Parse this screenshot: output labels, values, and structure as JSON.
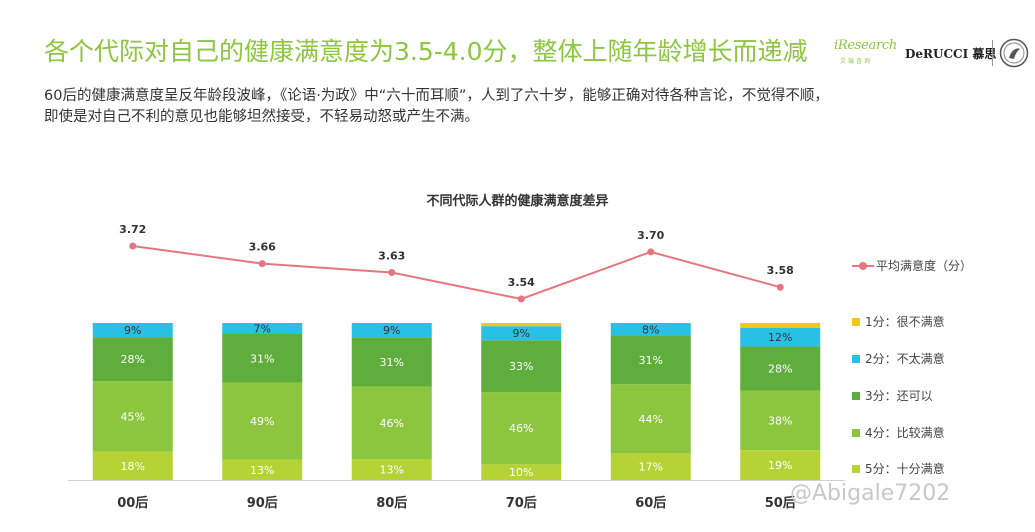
{
  "header": {
    "title": "各个代际对自己的健康满意度为3.5-4.0分，整体上随年龄增长而递减",
    "subtitle_lines": [
      "60后的健康满意度呈反年龄段波峰，《论语·为政》中“六十而耳顺”，人到了六十岁，能够正确对待各种言论，不觉得不顺，",
      "即使是对自己不利的意见也能够坦然接受，不轻易动怒或产生不满。"
    ],
    "logos": {
      "iresearch": "iResearch",
      "iresearch_cn": "艾瑞咨询",
      "derucci": "DeRUCCI 慕思"
    }
  },
  "watermark": "@Abigale7202",
  "colors": {
    "title_green": "#8dc63f",
    "line": "#e4777d",
    "s1": "#f5c518",
    "s2": "#29c0e6",
    "s3": "#5fad3c",
    "s4": "#8cc63f",
    "s5": "#b5d334"
  },
  "chart_data": {
    "type": "bar",
    "stacked": true,
    "title": "不同代际人群的健康满意度差异",
    "categories": [
      "00后",
      "90后",
      "80后",
      "70后",
      "60后",
      "50后"
    ],
    "series": [
      {
        "name": "5分：十分满意",
        "color": "#b5d334",
        "values": [
          18,
          13,
          13,
          10,
          17,
          19
        ],
        "labels": [
          "18%",
          "13%",
          "13%",
          "10%",
          "17%",
          "19%"
        ]
      },
      {
        "name": "4分：比较满意",
        "color": "#8cc63f",
        "values": [
          45,
          49,
          46,
          46,
          44,
          38
        ],
        "labels": [
          "45%",
          "49%",
          "46%",
          "46%",
          "44%",
          "38%"
        ]
      },
      {
        "name": "3分：还可以",
        "color": "#5fad3c",
        "values": [
          28,
          31,
          31,
          33,
          31,
          28
        ],
        "labels": [
          "28%",
          "31%",
          "31%",
          "33%",
          "31%",
          "28%"
        ]
      },
      {
        "name": "2分：不太满意",
        "color": "#29c0e6",
        "values": [
          9,
          7,
          9,
          9,
          8,
          12
        ],
        "labels": [
          "9%",
          "7%",
          "9%",
          "9%",
          "8%",
          "12%"
        ]
      },
      {
        "name": "1分：很不满意",
        "color": "#f5c518",
        "values": [
          0,
          0,
          0,
          2,
          0,
          3
        ],
        "labels": [
          "",
          "",
          "",
          "",
          "",
          ""
        ]
      }
    ],
    "line": {
      "name": "平均满意度（分）",
      "color": "#e4777d",
      "values": [
        3.72,
        3.66,
        3.63,
        3.54,
        3.7,
        3.58
      ],
      "labels": [
        "3.72",
        "3.66",
        "3.63",
        "3.54",
        "3.70",
        "3.58"
      ]
    },
    "legend_position": "right",
    "grid": false
  }
}
